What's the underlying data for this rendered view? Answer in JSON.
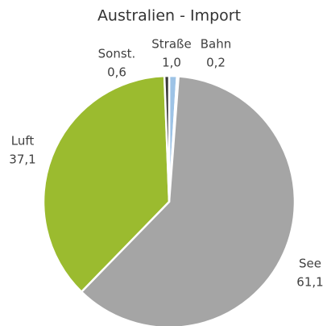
{
  "chart_data": {
    "type": "pie",
    "title": "Australien - Import",
    "categories": [
      "Straße",
      "Bahn",
      "See",
      "Luft",
      "Sonst."
    ],
    "values": [
      1.0,
      0.2,
      61.1,
      37.1,
      0.6
    ],
    "value_labels": [
      "1,0",
      "0,2",
      "61,1",
      "37,1",
      "0,6"
    ],
    "colors": [
      "#9dc3e6",
      "#ffffff",
      "#a5a5a5",
      "#9bbb2f",
      "#3a3a3a"
    ]
  }
}
